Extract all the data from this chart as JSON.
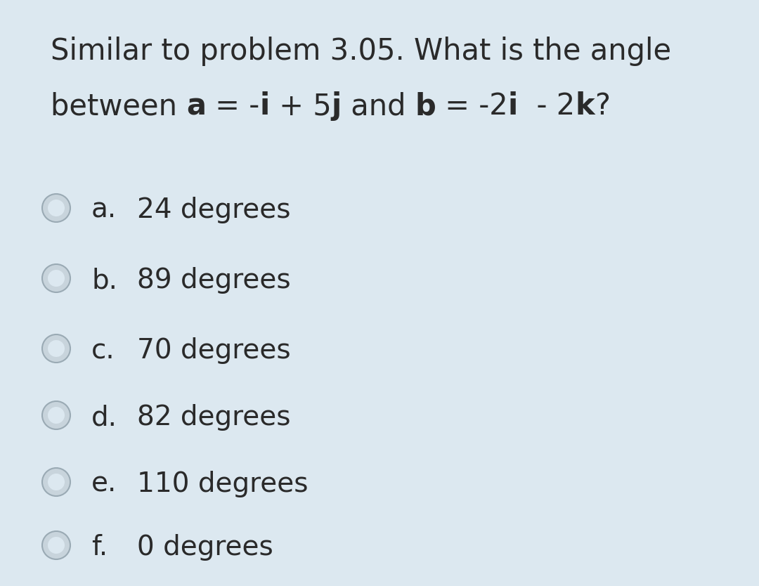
{
  "background_color": "#dce8f0",
  "title_line1": "Similar to problem 3.05. What is the angle",
  "options": [
    {
      "label": "a.",
      "text": "24 degrees"
    },
    {
      "label": "b.",
      "text": "89 degrees"
    },
    {
      "label": "c.",
      "text": "70 degrees"
    },
    {
      "label": "d.",
      "text": "82 degrees"
    },
    {
      "label": "e.",
      "text": "110 degrees"
    },
    {
      "label": "f.",
      "text": "0 degrees"
    }
  ],
  "text_color": "#2a2a2a",
  "radio_fill_color": "#c8d4dc",
  "radio_inner_color": "#dce8f0",
  "radio_border_color": "#9aaab4",
  "font_size_title": 30,
  "font_size_options": 28
}
